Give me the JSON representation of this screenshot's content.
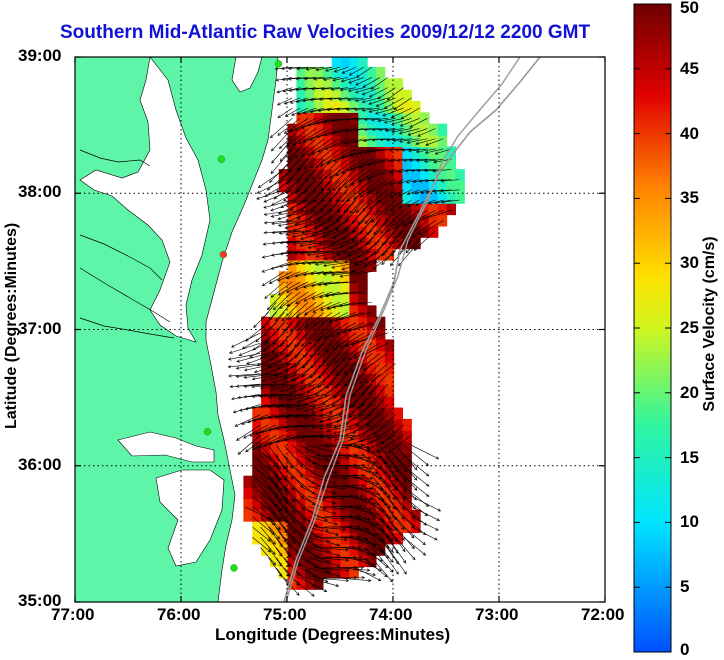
{
  "title": "Southern Mid-Atlantic Raw Velocities 2009/12/12 2200 GMT",
  "x_axis": {
    "label": "Longitude (Degrees:Minutes)",
    "ticks": [
      "77:00",
      "76:00",
      "75:00",
      "74:00",
      "73:00",
      "72:00"
    ]
  },
  "y_axis": {
    "label": "Latitude (Degrees:Minutes)",
    "ticks": [
      "39:00",
      "38:00",
      "37:00",
      "36:00",
      "35:00"
    ]
  },
  "colorbar": {
    "label": "Surface Velocity (cm/s)",
    "min": 0,
    "max": 50,
    "ticks": [
      "0",
      "5",
      "10",
      "15",
      "20",
      "25",
      "30",
      "35",
      "40",
      "45",
      "50"
    ]
  },
  "colors": {
    "land": "#5ef5a8",
    "water": "#ffffff",
    "vectors": "#000000",
    "title": "#1212d6",
    "stations": "#22dd22",
    "station_highlight": "#ff3333"
  },
  "extent": {
    "lon": [
      -77,
      -72
    ],
    "lat": [
      35,
      39
    ]
  },
  "grid": true
}
